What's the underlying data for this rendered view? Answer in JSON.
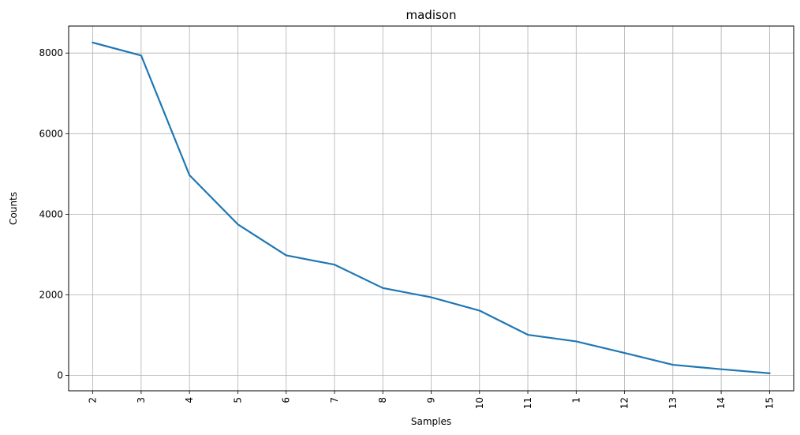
{
  "chart_data": {
    "type": "line",
    "title": "madison",
    "xlabel": "Samples",
    "ylabel": "Counts",
    "categories": [
      "2",
      "3",
      "4",
      "5",
      "6",
      "7",
      "8",
      "9",
      "10",
      "11",
      "1",
      "12",
      "13",
      "14",
      "15"
    ],
    "series": [
      {
        "values": [
          8260,
          7940,
          4970,
          3750,
          2980,
          2750,
          2170,
          1940,
          1610,
          1010,
          845,
          560,
          265,
          155,
          55
        ]
      }
    ],
    "yticks": [
      0,
      2000,
      4000,
      6000,
      8000
    ],
    "ylim": [
      -380,
      8670
    ],
    "grid": true,
    "x_tick_rotation": "vertical",
    "line_color": "#1f77b4",
    "grid_color": "#b0b0b0"
  }
}
